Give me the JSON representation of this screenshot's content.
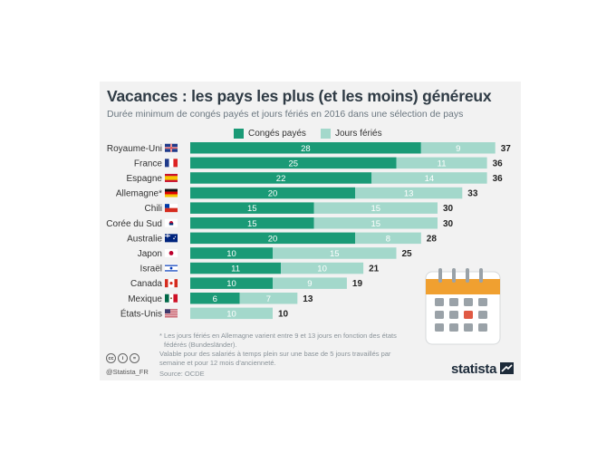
{
  "header": {
    "title": "Vacances : les pays les plus (et les moins) généreux",
    "subtitle": "Durée minimum de congés payés et jours fériés en 2016 dans une sélection de pays"
  },
  "colors": {
    "paid": "#1a9a76",
    "holidays": "#a3d8cb",
    "card": "#f2f2f2",
    "calendar_accent": "#f0a030",
    "calendar_marker": "#e05a44"
  },
  "chart_data": {
    "type": "bar",
    "orientation": "horizontal",
    "stacked": true,
    "title": "Vacances : les pays les plus (et les moins) généreux",
    "categories": [
      "Royaume-Uni",
      "France",
      "Espagne",
      "Allemagne*",
      "Chili",
      "Corée du Sud",
      "Australie",
      "Japon",
      "Israël",
      "Canada",
      "Mexique",
      "États-Unis"
    ],
    "flags": [
      "uk-flag-icon",
      "france-flag-icon",
      "spain-flag-icon",
      "germany-flag-icon",
      "chile-flag-icon",
      "south-korea-flag-icon",
      "australia-flag-icon",
      "japan-flag-icon",
      "israel-flag-icon",
      "canada-flag-icon",
      "mexico-flag-icon",
      "usa-flag-icon"
    ],
    "series": [
      {
        "name": "Congés payés",
        "values": [
          28,
          25,
          22,
          20,
          15,
          15,
          20,
          10,
          11,
          10,
          6,
          0
        ]
      },
      {
        "name": "Jours fériés",
        "values": [
          9,
          11,
          14,
          13,
          15,
          15,
          8,
          15,
          10,
          9,
          7,
          10
        ]
      }
    ],
    "totals": [
      37,
      36,
      36,
      33,
      30,
      30,
      28,
      25,
      21,
      19,
      13,
      10
    ],
    "xlim": [
      0,
      37
    ],
    "legend": "top"
  },
  "notes": {
    "line1": "* Les jours fériés en Allemagne varient entre 9 et 13 jours en fonction des états",
    "line2": "fédérés (Bundesländer).",
    "line3": "Valable pour des salariés à temps plein sur une base de 5 jours travaillés par",
    "line4": "semaine et pour 12 mois d'ancienneté.",
    "source": "Source: OCDE"
  },
  "footer": {
    "cc1": "cc",
    "cc2": "i",
    "cc3": "=",
    "handle": "@Statista_FR",
    "brand": "statista"
  }
}
